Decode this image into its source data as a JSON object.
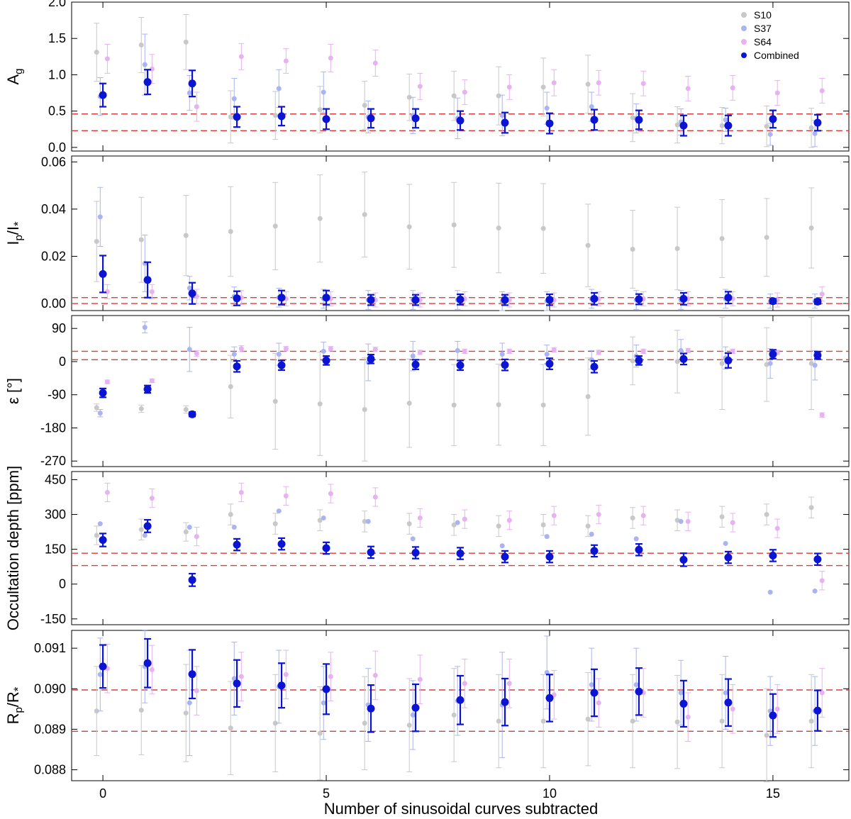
{
  "chart_data": {
    "type": "scatter",
    "xlabel": "Number of sinusoidal curves subtracted",
    "xlim": [
      -0.7,
      16.7
    ],
    "xticks": [
      0,
      5,
      10,
      15
    ],
    "x": [
      0,
      1,
      2,
      3,
      4,
      5,
      6,
      7,
      8,
      9,
      10,
      11,
      12,
      13,
      14,
      15,
      16
    ],
    "legend": {
      "placement": "top-right",
      "entries": [
        {
          "name": "S10",
          "color": "#c8c8c8"
        },
        {
          "name": "S37",
          "color": "#a9b4f0"
        },
        {
          "name": "S64",
          "color": "#e6b3f0"
        },
        {
          "name": "Combined",
          "color": "#0a14d2"
        }
      ]
    },
    "panels": [
      {
        "ylabel": "A_g",
        "ylabel_main": "A",
        "ylabel_sub": "g",
        "ylim": [
          -0.05,
          2.0
        ],
        "yticks": [
          0.0,
          0.5,
          1.0,
          1.5,
          2.0
        ],
        "ytick_labels": [
          "0.0",
          "0.5",
          "1.0",
          "1.5",
          "2.0"
        ],
        "reference_lines": [
          0.23,
          0.46
        ],
        "series": [
          {
            "name": "S10",
            "values": [
              1.31,
              1.41,
              1.45,
              0.42,
              0.44,
              0.52,
              0.58,
              0.69,
              0.71,
              0.71,
              0.83,
              0.87,
              0.41,
              0.31,
              0.3,
              0.29,
              0.27
            ],
            "errors": [
              0.4,
              0.38,
              0.38,
              0.36,
              0.33,
              0.32,
              0.33,
              0.32,
              0.34,
              0.4,
              0.4,
              0.4,
              0.33,
              0.25,
              0.25,
              0.28,
              0.27
            ]
          },
          {
            "name": "S37",
            "values": [
              0.7,
              1.14,
              0.75,
              0.67,
              0.81,
              0.76,
              0.42,
              0.44,
              0.4,
              0.44,
              0.54,
              0.56,
              0.4,
              0.35,
              0.38,
              0.18,
              0.19
            ],
            "errors": [
              0.26,
              0.42,
              0.24,
              0.28,
              0.26,
              0.28,
              0.22,
              0.25,
              0.28,
              0.28,
              0.22,
              0.2,
              0.2,
              0.18,
              0.16,
              0.15,
              0.18
            ]
          },
          {
            "name": "S64",
            "values": [
              1.22,
              1.08,
              0.56,
              1.25,
              1.19,
              1.23,
              1.16,
              0.84,
              0.76,
              0.83,
              0.89,
              0.89,
              0.88,
              0.81,
              0.82,
              0.75,
              0.78
            ],
            "errors": [
              0.2,
              0.2,
              0.2,
              0.18,
              0.17,
              0.19,
              0.18,
              0.18,
              0.17,
              0.17,
              0.18,
              0.17,
              0.17,
              0.17,
              0.17,
              0.17,
              0.17
            ]
          },
          {
            "name": "Combined",
            "values": [
              0.72,
              0.9,
              0.88,
              0.42,
              0.43,
              0.39,
              0.4,
              0.4,
              0.37,
              0.34,
              0.33,
              0.38,
              0.38,
              0.3,
              0.3,
              0.39,
              0.34
            ],
            "errors": [
              0.16,
              0.17,
              0.18,
              0.14,
              0.13,
              0.14,
              0.13,
              0.13,
              0.13,
              0.14,
              0.14,
              0.14,
              0.13,
              0.14,
              0.14,
              0.12,
              0.11
            ]
          }
        ]
      },
      {
        "ylabel": "I_p/I_*",
        "ylabel_main": "I",
        "ylabel_sub": "p",
        "ylabel_mid": "/I",
        "ylabel_star": "*",
        "ylim": [
          -0.003,
          0.0625
        ],
        "yticks": [
          0.0,
          0.02,
          0.04,
          0.06
        ],
        "ytick_labels": [
          "0.00",
          "0.02",
          "0.04",
          "0.06"
        ],
        "reference_lines": [
          0.0,
          0.0025
        ],
        "series": [
          {
            "name": "S10",
            "values": [
              0.0263,
              0.027,
              0.0288,
              0.0305,
              0.0328,
              0.036,
              0.0377,
              0.0325,
              0.0333,
              0.032,
              0.0318,
              0.0246,
              0.023,
              0.0233,
              0.0275,
              0.028,
              0.032
            ],
            "errors": [
              0.017,
              0.018,
              0.017,
              0.019,
              0.0185,
              0.0185,
              0.018,
              0.018,
              0.018,
              0.019,
              0.019,
              0.0175,
              0.0165,
              0.0175,
              0.0165,
              0.0165,
              0.017
            ]
          },
          {
            "name": "S37",
            "values": [
              0.0367,
              0.017,
              0.0065,
              0.003,
              0.0025,
              0.002,
              0.0015,
              0.0015,
              0.0015,
              0.001,
              0.001,
              0.002,
              0.0015,
              0.0015,
              0.002,
              0.001,
              0.001
            ],
            "errors": [
              0.0125,
              0.012,
              0.005,
              0.004,
              0.004,
              0.004,
              0.004,
              0.004,
              0.004,
              0.004,
              0.004,
              0.004,
              0.004,
              0.004,
              0.004,
              0.003,
              0.003
            ]
          },
          {
            "name": "S64",
            "values": [
              0.005,
              0.005,
              0.003,
              0.0025,
              0.002,
              0.002,
              0.0015,
              0.0015,
              0.002,
              0.0015,
              0.0015,
              0.002,
              0.002,
              0.002,
              0.002,
              0.0015,
              0.004
            ],
            "errors": [
              0.003,
              0.003,
              0.003,
              0.003,
              0.003,
              0.003,
              0.003,
              0.003,
              0.003,
              0.003,
              0.003,
              0.003,
              0.003,
              0.003,
              0.003,
              0.003,
              0.003
            ]
          },
          {
            "name": "Combined",
            "values": [
              0.0125,
              0.01,
              0.0043,
              0.0022,
              0.0025,
              0.0025,
              0.0015,
              0.0015,
              0.0017,
              0.0015,
              0.0016,
              0.002,
              0.0018,
              0.002,
              0.0025,
              0.001,
              0.0008
            ],
            "errors": [
              0.0078,
              0.0075,
              0.0045,
              0.003,
              0.003,
              0.003,
              0.0022,
              0.0022,
              0.0022,
              0.0022,
              0.0023,
              0.0025,
              0.0022,
              0.0025,
              0.0025,
              0.001,
              0.001
            ]
          }
        ]
      },
      {
        "ylabel": "ε [°]",
        "ylim": [
          -285,
          125
        ],
        "yticks": [
          90,
          0,
          -90,
          -180,
          -270
        ],
        "ytick_labels": [
          "90",
          "0",
          "-90",
          "-180",
          "-270"
        ],
        "reference_lines": [
          5,
          28
        ],
        "series": [
          {
            "name": "S10",
            "values": [
              -125,
              -128,
              -130,
              -68,
              -108,
              -115,
              -130,
              -113,
              -118,
              -117,
              -118,
              -95,
              2,
              0,
              -5,
              -8,
              -5
            ],
            "errors": [
              10,
              10,
              10,
              85,
              130,
              140,
              140,
              120,
              110,
              110,
              110,
              105,
              65,
              85,
              125,
              100,
              125
            ]
          },
          {
            "name": "S37",
            "values": [
              -140,
              93,
              33,
              20,
              20,
              28,
              -2,
              15,
              30,
              20,
              20,
              5,
              15,
              30,
              10,
              -5,
              -10
            ],
            "errors": [
              10,
              15,
              60,
              20,
              30,
              25,
              50,
              40,
              25,
              30,
              25,
              25,
              30,
              30,
              30,
              40,
              40
            ]
          },
          {
            "name": "S64",
            "values": [
              -55,
              -52,
              22,
              35,
              35,
              35,
              33,
              25,
              28,
              28,
              32,
              25,
              28,
              30,
              28,
              25,
              -145
            ],
            "errors": [
              5,
              5,
              8,
              8,
              6,
              6,
              6,
              6,
              6,
              6,
              6,
              6,
              6,
              6,
              6,
              6,
              6
            ]
          },
          {
            "name": "Combined",
            "values": [
              -85,
              -75,
              -143,
              -13,
              -10,
              3,
              7,
              -8,
              -10,
              -9,
              -6,
              -14,
              3,
              7,
              3,
              20,
              17
            ],
            "errors": [
              12,
              10,
              6,
              15,
              13,
              12,
              12,
              13,
              13,
              15,
              15,
              16,
              12,
              15,
              20,
              12,
              10
            ]
          }
        ]
      },
      {
        "ylabel": "Occultation depth [ppm]",
        "ylim": [
          -175,
          485
        ],
        "yticks": [
          450,
          300,
          150,
          0,
          -150
        ],
        "ytick_labels": [
          "450",
          "300",
          "150",
          "0",
          "-150"
        ],
        "reference_lines": [
          80,
          133
        ],
        "series": [
          {
            "name": "S10",
            "values": [
              210,
              235,
              225,
              300,
              260,
              275,
              270,
              260,
              255,
              250,
              255,
              250,
              285,
              275,
              290,
              300,
              330
            ],
            "errors": [
              40,
              45,
              40,
              45,
              45,
              45,
              45,
              45,
              45,
              45,
              45,
              45,
              45,
              45,
              45,
              45,
              45
            ]
          },
          {
            "name": "S37",
            "values": [
              260,
              210,
              245,
              245,
              315,
              285,
              270,
              195,
              265,
              165,
              205,
              215,
              195,
              270,
              175,
              -35,
              -30
            ]
          },
          {
            "name": "S64",
            "values": [
              395,
              370,
              205,
              395,
              380,
              390,
              375,
              285,
              280,
              275,
              295,
              300,
              295,
              270,
              265,
              240,
              15
            ],
            "errors": [
              40,
              40,
              40,
              40,
              40,
              40,
              40,
              40,
              40,
              40,
              40,
              40,
              40,
              40,
              40,
              40,
              40
            ]
          },
          {
            "name": "Combined",
            "values": [
              190,
              250,
              18,
              170,
              173,
              155,
              137,
              135,
              132,
              118,
              118,
              143,
              148,
              105,
              115,
              123,
              107
            ],
            "errors": [
              28,
              27,
              27,
              25,
              25,
              25,
              25,
              25,
              25,
              25,
              25,
              25,
              25,
              28,
              25,
              25,
              25
            ]
          }
        ]
      },
      {
        "ylabel": "R_p/R_*",
        "ylabel_main": "R",
        "ylabel_sub": "p",
        "ylabel_mid": "/R",
        "ylabel_star": "*",
        "ylim": [
          0.08773,
          0.09144
        ],
        "yticks": [
          0.088,
          0.089,
          0.09,
          0.091
        ],
        "ytick_labels": [
          "0.088",
          "0.089",
          "0.090",
          "0.091"
        ],
        "reference_lines": [
          0.08895,
          0.08997
        ],
        "series": [
          {
            "name": "S10",
            "values": [
              0.08945,
              0.08947,
              0.0894,
              0.08903,
              0.08915,
              0.0889,
              0.08915,
              0.0891,
              0.08935,
              0.0892,
              0.0892,
              0.08925,
              0.0892,
              0.08918,
              0.0892,
              0.08885,
              0.0892
            ],
            "errors": [
              0.0011,
              0.0011,
              0.0012,
              0.00115,
              0.0012,
              0.00115,
              0.00115,
              0.00115,
              0.00115,
              0.00115,
              0.00115,
              0.00115,
              0.00115,
              0.00115,
              0.00115,
              0.00115,
              0.00115
            ]
          },
          {
            "name": "S37",
            "values": [
              0.09035,
              0.09055,
              0.08965,
              0.09025,
              0.09005,
              0.08965,
              0.0896,
              0.08935,
              0.0897,
              0.0896,
              0.0904,
              0.0901,
              0.0901,
              0.0899,
              0.0899,
              0.08945,
              0.08945
            ],
            "errors": [
              0.0009,
              0.0009,
              0.0013,
              0.0009,
              0.0009,
              0.0009,
              0.0009,
              0.00085,
              0.00085,
              0.0013,
              0.0009,
              0.0009,
              0.0009,
              0.0008,
              0.0009,
              0.00085,
              0.00085
            ]
          },
          {
            "name": "S64",
            "values": [
              0.0905,
              0.09047,
              0.08995,
              0.0903,
              0.09035,
              0.0903,
              0.09033,
              0.09023,
              0.09013,
              0.09013,
              0.08985,
              0.08965,
              0.0899,
              0.0893,
              0.0895,
              0.0895,
              0.0899
            ],
            "errors": [
              0.0006,
              0.0006,
              0.0006,
              0.0006,
              0.0006,
              0.0006,
              0.0006,
              0.0006,
              0.0006,
              0.0006,
              0.0006,
              0.0006,
              0.0006,
              0.0006,
              0.0006,
              0.0006,
              0.0006
            ]
          },
          {
            "name": "Combined",
            "values": [
              0.09055,
              0.09063,
              0.09036,
              0.09013,
              0.09008,
              0.08999,
              0.08951,
              0.08953,
              0.08972,
              0.08967,
              0.08977,
              0.0899,
              0.08993,
              0.08963,
              0.08966,
              0.08934,
              0.08946
            ],
            "errors": [
              0.00053,
              0.0006,
              0.0006,
              0.00058,
              0.00055,
              0.00062,
              0.00058,
              0.00058,
              0.0006,
              0.00058,
              0.00058,
              0.00058,
              0.00058,
              0.00057,
              0.00058,
              0.00053,
              0.0005
            ]
          }
        ]
      }
    ]
  }
}
